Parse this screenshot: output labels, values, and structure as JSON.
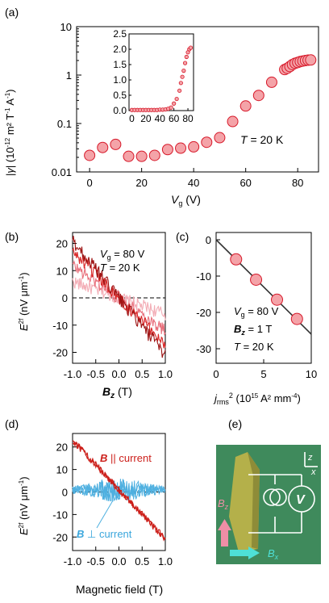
{
  "panels": {
    "a": "(a)",
    "b": "(b)",
    "c": "(c)",
    "d": "(d)",
    "e": "(e)"
  },
  "colors": {
    "marker_fill": "#f4a3a8",
    "marker_edge": "#d7192a",
    "fit_line": "#333333",
    "b_parallel": "#cc1f1a",
    "b_perp": "#4fb0e0",
    "photo_bg": "#3f8a5c",
    "sample": "#b4b04a",
    "arrow_bz": "#ef8ea6",
    "arrow_bx": "#4ee0d6"
  },
  "chart_data": [
    {
      "id": "a",
      "type": "scatter",
      "title": "",
      "xlabel": "V_g (V)",
      "ylabel": "|γ| (10^-12 m² T^-1 A^-1)",
      "yscale": "log",
      "xlim": [
        -5,
        88
      ],
      "ylim": [
        0.01,
        10
      ],
      "xticks": [
        "0",
        "20",
        "40",
        "60",
        "80"
      ],
      "yticks": [
        "0.01",
        "0.1",
        "1",
        "10"
      ],
      "annotation": "T = 20 K",
      "x": [
        0,
        5,
        10,
        15,
        20,
        25,
        30,
        35,
        40,
        45,
        50,
        55,
        60,
        65,
        70,
        75,
        76,
        77,
        78,
        79,
        80,
        81,
        82,
        83,
        84,
        85
      ],
      "y": [
        0.022,
        0.032,
        0.037,
        0.021,
        0.021,
        0.022,
        0.029,
        0.031,
        0.033,
        0.041,
        0.051,
        0.11,
        0.23,
        0.38,
        0.71,
        1.3,
        1.38,
        1.5,
        1.65,
        1.75,
        1.82,
        1.9,
        1.95,
        2.0,
        2.03,
        2.05
      ]
    },
    {
      "id": "a-inset",
      "type": "scatter",
      "xlim": [
        -4,
        88
      ],
      "ylim": [
        0,
        2.5
      ],
      "xticks": [
        "0",
        "20",
        "40",
        "60",
        "80"
      ],
      "yticks": [
        "0.0",
        "0.5",
        "1.0",
        "1.5",
        "2.0",
        "2.5"
      ],
      "x": [
        0,
        4,
        8,
        12,
        16,
        20,
        24,
        28,
        32,
        36,
        40,
        44,
        48,
        52,
        56,
        60,
        64,
        68,
        70,
        72,
        74,
        76,
        78,
        80,
        82,
        84
      ],
      "y": [
        0.02,
        0.02,
        0.02,
        0.02,
        0.02,
        0.02,
        0.02,
        0.02,
        0.02,
        0.02,
        0.03,
        0.03,
        0.04,
        0.06,
        0.1,
        0.23,
        0.38,
        0.65,
        0.9,
        1.1,
        1.3,
        1.55,
        1.75,
        1.9,
        2.0,
        2.05
      ]
    },
    {
      "id": "b",
      "type": "line",
      "xlabel": "B_z (T)",
      "ylabel": "E^2f (nV μm^-1)",
      "xlim": [
        -1,
        1
      ],
      "ylim": [
        -24,
        24
      ],
      "xticks": [
        "-1.0",
        "-0.5",
        "0.0",
        "0.5",
        "1.0"
      ],
      "yticks": [
        "20",
        "10",
        "0",
        "-10",
        "-20"
      ],
      "annotations": [
        "V_g = 80 V",
        "T = 20 K"
      ],
      "series": [
        {
          "slope": -21,
          "color": "#9e1414",
          "x": [
            -1,
            1
          ],
          "y": [
            21,
            -21
          ]
        },
        {
          "slope": -17,
          "color": "#d92626",
          "x": [
            -1,
            1
          ],
          "y": [
            17,
            -17
          ]
        },
        {
          "slope": -12,
          "color": "#e8707c",
          "x": [
            -1,
            1
          ],
          "y": [
            12,
            -12
          ]
        },
        {
          "slope": -6,
          "color": "#f3adb6",
          "x": [
            -1,
            1
          ],
          "y": [
            6,
            -6
          ]
        }
      ]
    },
    {
      "id": "c",
      "type": "scatter",
      "xlabel": "j_rms² (10^15 A² mm^-4)",
      "ylabel": "",
      "xlim": [
        0,
        10
      ],
      "ylim": [
        -34,
        2
      ],
      "xticks": [
        "0",
        "5",
        "10"
      ],
      "yticks": [
        "0",
        "-10",
        "-20",
        "-30"
      ],
      "annotations": [
        "V_g = 80 V",
        "B_z = 1 T",
        "T = 20 K"
      ],
      "x": [
        2.1,
        4.2,
        6.4,
        8.5
      ],
      "y": [
        -5.4,
        -11.0,
        -16.5,
        -21.8
      ],
      "fit": {
        "slope": -2.6,
        "intercept": 0
      }
    },
    {
      "id": "d",
      "type": "line",
      "xlabel": "Magnetic field (T)",
      "ylabel": "E^2f (nV μm^-1)",
      "xlim": [
        -1,
        1
      ],
      "ylim": [
        -26,
        26
      ],
      "xticks": [
        "-1.0",
        "-0.5",
        "0.0",
        "0.5",
        "1.0"
      ],
      "yticks": [
        "20",
        "10",
        "0",
        "-10",
        "-20"
      ],
      "series": [
        {
          "name": "B || current",
          "x": [
            -1,
            1
          ],
          "y": [
            23,
            -21
          ]
        },
        {
          "name": "B ⊥ current",
          "x": [
            -1,
            1
          ],
          "y": [
            0,
            0
          ]
        }
      ]
    }
  ],
  "photo": {
    "bz_label": "B_z",
    "bx_label": "B_x",
    "axis_z": "z",
    "axis_x": "x",
    "voltmeter": "V"
  }
}
